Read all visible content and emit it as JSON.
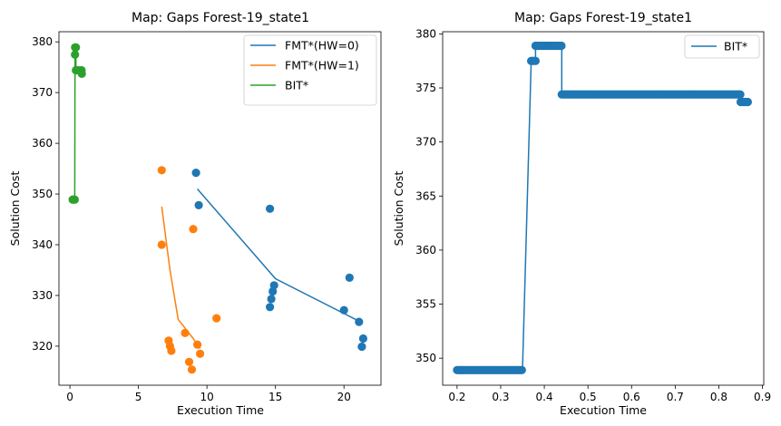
{
  "chart_data": [
    {
      "type": "scatter",
      "title": "Map: Gaps Forest-19_state1",
      "xlabel": "Execution Time",
      "ylabel": "Solution Cost",
      "xlim": [
        -0.8,
        22.7
      ],
      "ylim": [
        312.3,
        382.0
      ],
      "xticks": [
        0,
        5,
        10,
        15,
        20
      ],
      "yticks": [
        320,
        330,
        340,
        350,
        360,
        370,
        380
      ],
      "grid": false,
      "legend_position": "top-right",
      "series": [
        {
          "name": "FMT*(HW=0)",
          "color": "#1f77b4",
          "line": [
            [
              9.3,
              351.0
            ],
            [
              15.0,
              333.3
            ],
            [
              21.2,
              324.8
            ]
          ],
          "points": [
            [
              9.2,
              354.2
            ],
            [
              9.4,
              347.8
            ],
            [
              14.6,
              347.1
            ],
            [
              14.9,
              332.0
            ],
            [
              14.8,
              330.8
            ],
            [
              14.7,
              329.3
            ],
            [
              14.6,
              327.7
            ],
            [
              20.4,
              333.5
            ],
            [
              20.0,
              327.1
            ],
            [
              21.1,
              324.8
            ],
            [
              21.4,
              321.5
            ],
            [
              21.3,
              319.9
            ]
          ]
        },
        {
          "name": "FMT*(HW=1)",
          "color": "#ff7f0e",
          "line": [
            [
              6.7,
              347.5
            ],
            [
              7.3,
              335.0
            ],
            [
              7.9,
              325.3
            ],
            [
              9.0,
              321.5
            ],
            [
              9.5,
              319.5
            ]
          ],
          "points": [
            [
              6.7,
              354.7
            ],
            [
              6.7,
              340.0
            ],
            [
              7.2,
              321.1
            ],
            [
              7.3,
              320.0
            ],
            [
              7.4,
              319.1
            ],
            [
              9.0,
              343.1
            ],
            [
              9.3,
              320.3
            ],
            [
              9.5,
              318.5
            ],
            [
              8.4,
              322.6
            ],
            [
              8.7,
              316.9
            ],
            [
              8.9,
              315.4
            ],
            [
              10.7,
              325.5
            ]
          ]
        },
        {
          "name": "BIT*",
          "color": "#2ca02c",
          "line": [
            [
              0.2,
              348.9
            ],
            [
              0.35,
              348.9
            ],
            [
              0.37,
              377.5
            ],
            [
              0.38,
              378.9
            ],
            [
              0.44,
              378.9
            ],
            [
              0.44,
              374.4
            ],
            [
              0.85,
              374.4
            ],
            [
              0.85,
              373.7
            ],
            [
              0.87,
              373.7
            ]
          ],
          "points": [
            [
              0.2,
              348.9
            ],
            [
              0.3,
              348.9
            ],
            [
              0.35,
              348.9
            ],
            [
              0.37,
              377.5
            ],
            [
              0.38,
              378.9
            ],
            [
              0.44,
              378.9
            ],
            [
              0.44,
              374.4
            ],
            [
              0.6,
              374.4
            ],
            [
              0.85,
              374.4
            ],
            [
              0.87,
              373.7
            ]
          ]
        }
      ]
    },
    {
      "type": "line",
      "title": "Map: Gaps Forest-19_state1",
      "xlabel": "Execution Time",
      "ylabel": "Solution Cost",
      "xlim": [
        0.167,
        0.903
      ],
      "ylim": [
        347.5,
        380.2
      ],
      "xticks": [
        0.2,
        0.3,
        0.4,
        0.5,
        0.6,
        0.7,
        0.8,
        0.9
      ],
      "yticks": [
        350,
        355,
        360,
        365,
        370,
        375,
        380
      ],
      "grid": false,
      "legend_position": "top-right",
      "series": [
        {
          "name": "BIT*",
          "color": "#1f77b4",
          "segments": [
            {
              "x_start": 0.2,
              "x_end": 0.35,
              "y": 348.9
            },
            {
              "x_start": 0.37,
              "x_end": 0.38,
              "y": 377.5
            },
            {
              "x_start": 0.38,
              "x_end": 0.44,
              "y": 378.9
            },
            {
              "x_start": 0.44,
              "x_end": 0.85,
              "y": 374.4
            },
            {
              "x_start": 0.85,
              "x_end": 0.867,
              "y": 373.7
            }
          ],
          "marker_spacing": 0.0033
        }
      ]
    }
  ]
}
